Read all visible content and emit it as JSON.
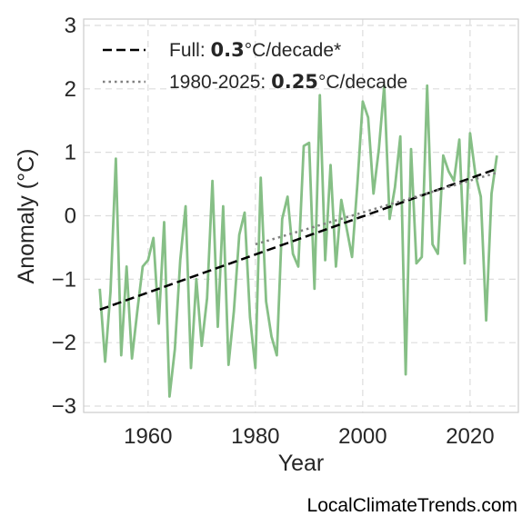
{
  "chart_data": {
    "type": "line",
    "xlabel": "Year",
    "ylabel": "Anomaly (°C)",
    "xlim": [
      1948,
      2029
    ],
    "ylim": [
      -3.1,
      3.1
    ],
    "xticks": [
      1960,
      1980,
      2000,
      2020
    ],
    "yticks": [
      -3,
      -2,
      -1,
      0,
      1,
      2,
      3
    ],
    "grid": true,
    "legend_position": "top-left",
    "colors": {
      "series": "#86bf86",
      "full_trend": "#000000",
      "recent_trend": "#808080"
    },
    "series": [
      {
        "x": [
          1951,
          1952,
          1953,
          1954,
          1955,
          1956,
          1957,
          1958,
          1959,
          1960,
          1961,
          1962,
          1963,
          1964,
          1965,
          1966,
          1967,
          1968,
          1969,
          1970,
          1971,
          1972,
          1973,
          1974,
          1975,
          1976,
          1977,
          1978,
          1979,
          1980,
          1981,
          1982,
          1983,
          1984,
          1985,
          1986,
          1987,
          1988,
          1989,
          1990,
          1991,
          1992,
          1993,
          1994,
          1995,
          1996,
          1997,
          1998,
          1999,
          2000,
          2001,
          2002,
          2003,
          2004,
          2005,
          2006,
          2007,
          2008,
          2009,
          2010,
          2011,
          2012,
          2013,
          2014,
          2015,
          2016,
          2017,
          2018,
          2019,
          2020,
          2021,
          2022,
          2023,
          2024,
          2025
        ],
        "values": [
          -1.15,
          -2.3,
          -1.2,
          0.9,
          -2.2,
          -0.8,
          -2.25,
          -1.5,
          -0.8,
          -0.7,
          -0.35,
          -1.7,
          -0.1,
          -2.85,
          -2.1,
          -0.7,
          0.15,
          -2.4,
          -1.0,
          -2.05,
          -1.3,
          0.55,
          -1.75,
          0.15,
          -2.35,
          -1.5,
          -0.3,
          0.05,
          -1.6,
          -2.4,
          0.6,
          -1.35,
          -1.9,
          -2.2,
          -0.05,
          0.3,
          -0.6,
          -0.8,
          1.1,
          1.15,
          -1.15,
          1.9,
          -0.7,
          0.8,
          -0.8,
          0.25,
          -0.2,
          -0.65,
          0.5,
          1.8,
          1.55,
          0.35,
          1.05,
          2.05,
          -0.05,
          0.45,
          1.25,
          -2.5,
          1.05,
          -0.75,
          -0.65,
          2.05,
          -0.45,
          -0.6,
          0.95,
          0.7,
          0.55,
          1.2,
          -0.75,
          1.3,
          0.65,
          0.3,
          -1.65,
          0.35,
          0.95
        ]
      }
    ],
    "trends": [
      {
        "label": "Full: ",
        "value_bold": "0.3",
        "unit": "°C/decade*",
        "style": "dashed",
        "x": [
          1951,
          2025
        ],
        "y": [
          -1.48,
          0.74
        ]
      },
      {
        "label": "1980-2025: ",
        "value_bold": "0.25",
        "unit": "°C/decade",
        "style": "dotted",
        "x": [
          1980,
          2025
        ],
        "y": [
          -0.45,
          0.68
        ]
      }
    ]
  },
  "credit": "LocalClimateTrends.com"
}
